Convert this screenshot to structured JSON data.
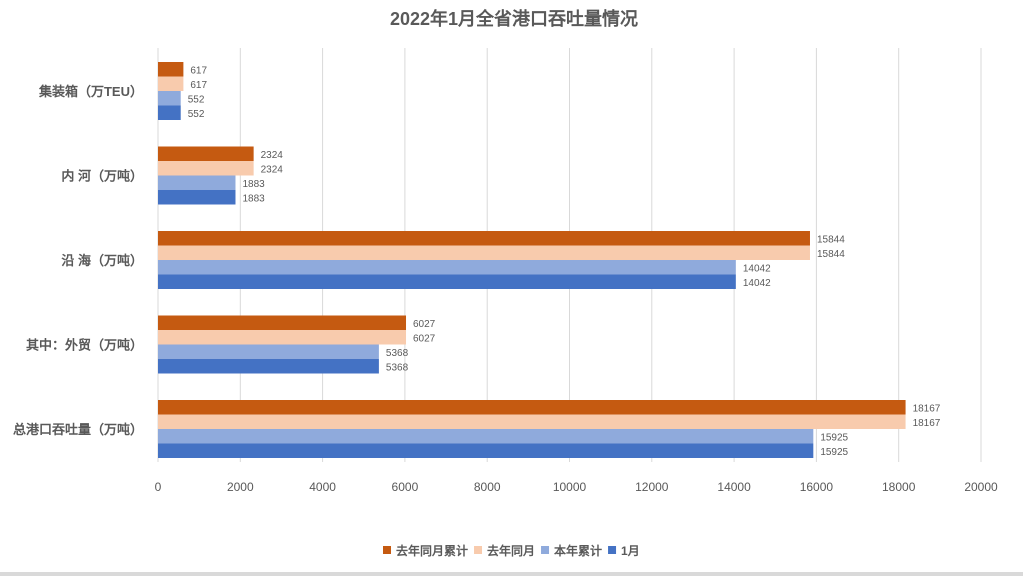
{
  "chart_data": {
    "type": "bar",
    "orientation": "horizontal",
    "title": "2022年1月全省港口吞吐量情况",
    "categories": [
      "集装箱（万TEU）",
      "内 河（万吨）",
      "沿 海（万吨）",
      "其中：外贸（万吨）",
      "总港口吞吐量（万吨）"
    ],
    "series": [
      {
        "name": "去年同月累计",
        "color": "#c55a11",
        "values": [
          617,
          2324,
          15844,
          6027,
          18167
        ]
      },
      {
        "name": "去年同月",
        "color": "#f8cbad",
        "values": [
          617,
          2324,
          15844,
          6027,
          18167
        ]
      },
      {
        "name": "本年累计",
        "color": "#8faadc",
        "values": [
          552,
          1883,
          14042,
          5368,
          15925
        ]
      },
      {
        "name": "1月",
        "color": "#4472c4",
        "values": [
          552,
          1883,
          14042,
          5368,
          15925
        ]
      }
    ],
    "xlim": [
      0,
      20000
    ],
    "xticks": [
      "0",
      "2000",
      "4000",
      "6000",
      "8000",
      "10000",
      "12000",
      "14000",
      "16000",
      "18000",
      "20000"
    ],
    "grid": true,
    "data_labels": true,
    "legend_position": "bottom"
  }
}
